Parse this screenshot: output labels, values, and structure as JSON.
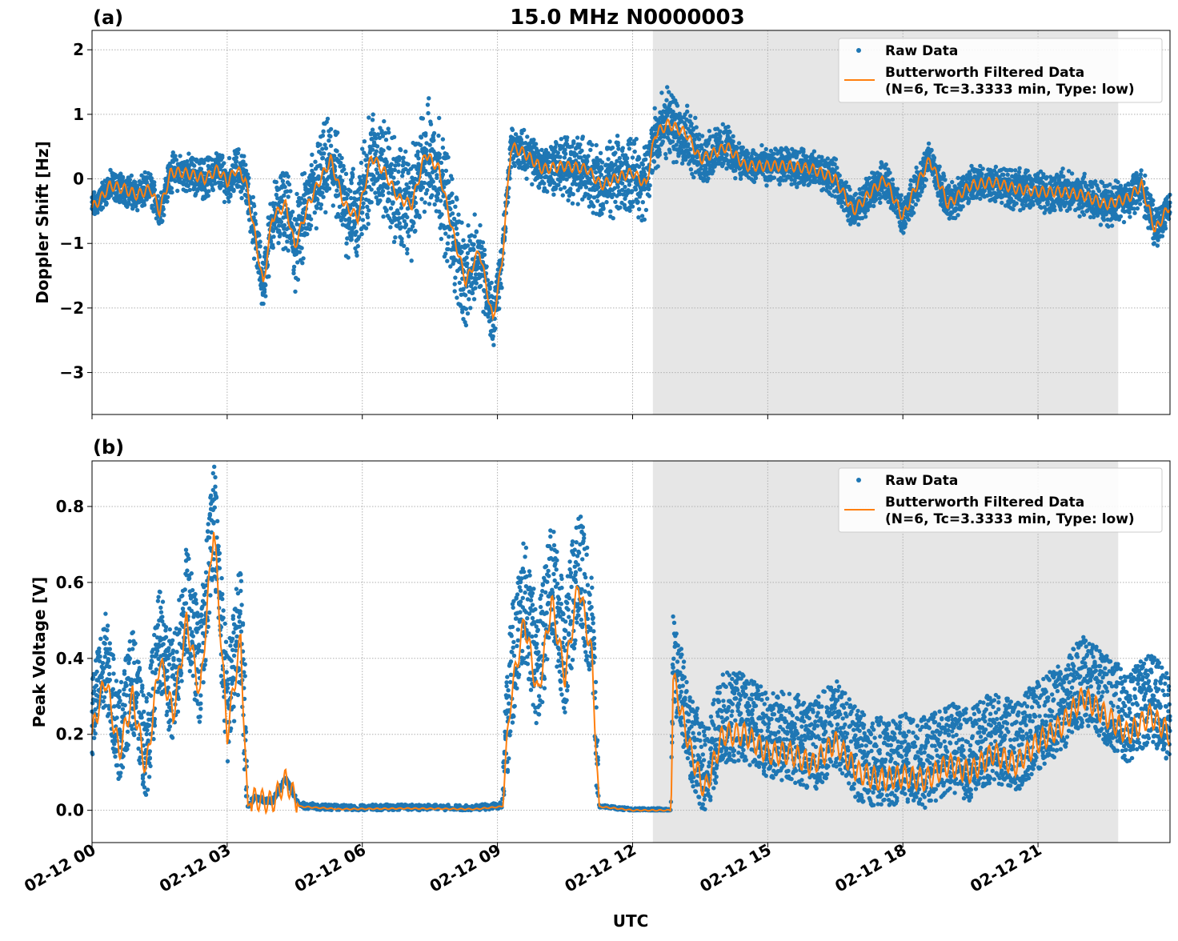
{
  "figure": {
    "xlabel": "UTC",
    "x_ticks": [
      "02-12 00",
      "02-12 03",
      "02-12 06",
      "02-12 09",
      "02-12 12",
      "02-12 15",
      "02-12 18",
      "02-12 21"
    ],
    "x_range_hours": [
      0,
      23.93
    ],
    "night_band_hours": [
      12.45,
      22.78
    ]
  },
  "colors": {
    "raw": "#1f77b4",
    "filtered": "#ff7f0e",
    "shade": "#e6e6e6",
    "grid": "#b0b0b0"
  },
  "chart_data": [
    {
      "type": "scatter",
      "panel": "(a)",
      "title": "15.0 MHz N0000003",
      "xlabel": "",
      "ylabel": "Doppler Shift [Hz]",
      "ylim": [
        -3.65,
        2.3
      ],
      "y_ticks": [
        2,
        1,
        0,
        -1,
        -2,
        -3
      ],
      "y_tick_labels": [
        "2",
        "1",
        "0",
        "−1",
        "−2",
        "−3"
      ],
      "legend": [
        "Raw Data",
        "Butterworth Filtered Data",
        "(N=6, Tc=3.3333 min, Type: low)"
      ],
      "legend_position": "top-right",
      "series": [
        {
          "name": "Butterworth Filtered Data",
          "style": "line",
          "points": [
            [
              0,
              -0.45
            ],
            [
              0.2,
              -0.3
            ],
            [
              0.4,
              -0.1
            ],
            [
              0.7,
              -0.15
            ],
            [
              1.0,
              -0.25
            ],
            [
              1.3,
              -0.15
            ],
            [
              1.5,
              -0.5
            ],
            [
              1.75,
              0.1
            ],
            [
              2.0,
              0.1
            ],
            [
              2.3,
              0.05
            ],
            [
              2.5,
              0.0
            ],
            [
              2.8,
              0.15
            ],
            [
              3.0,
              -0.05
            ],
            [
              3.2,
              0.15
            ],
            [
              3.4,
              0.0
            ],
            [
              3.6,
              -0.8
            ],
            [
              3.8,
              -1.65
            ],
            [
              4.0,
              -0.6
            ],
            [
              4.3,
              -0.4
            ],
            [
              4.5,
              -1.05
            ],
            [
              4.8,
              -0.4
            ],
            [
              5.0,
              -0.1
            ],
            [
              5.3,
              0.3
            ],
            [
              5.6,
              -0.4
            ],
            [
              5.9,
              -0.6
            ],
            [
              6.2,
              0.35
            ],
            [
              6.5,
              0.1
            ],
            [
              6.8,
              -0.3
            ],
            [
              7.1,
              -0.4
            ],
            [
              7.4,
              0.4
            ],
            [
              7.7,
              0.15
            ],
            [
              8.0,
              -0.8
            ],
            [
              8.3,
              -1.6
            ],
            [
              8.6,
              -1.1
            ],
            [
              8.9,
              -2.2
            ],
            [
              9.1,
              -1.3
            ],
            [
              9.3,
              0.5
            ],
            [
              9.6,
              0.4
            ],
            [
              10.0,
              0.15
            ],
            [
              10.5,
              0.2
            ],
            [
              11.0,
              0.15
            ],
            [
              11.3,
              -0.1
            ],
            [
              11.6,
              0.0
            ],
            [
              12.0,
              0.1
            ],
            [
              12.3,
              -0.1
            ],
            [
              12.5,
              0.7
            ],
            [
              12.8,
              0.85
            ],
            [
              13.2,
              0.7
            ],
            [
              13.5,
              0.3
            ],
            [
              13.8,
              0.4
            ],
            [
              14.1,
              0.5
            ],
            [
              14.5,
              0.2
            ],
            [
              15.0,
              0.2
            ],
            [
              15.5,
              0.2
            ],
            [
              16.0,
              0.15
            ],
            [
              16.5,
              0.0
            ],
            [
              16.9,
              -0.5
            ],
            [
              17.3,
              -0.2
            ],
            [
              17.6,
              0.0
            ],
            [
              18.0,
              -0.6
            ],
            [
              18.3,
              -0.1
            ],
            [
              18.6,
              0.3
            ],
            [
              19.0,
              -0.4
            ],
            [
              19.5,
              -0.1
            ],
            [
              20.0,
              -0.05
            ],
            [
              20.5,
              -0.15
            ],
            [
              21.0,
              -0.2
            ],
            [
              21.5,
              -0.2
            ],
            [
              22.0,
              -0.25
            ],
            [
              22.5,
              -0.4
            ],
            [
              23.0,
              -0.3
            ],
            [
              23.3,
              -0.1
            ],
            [
              23.6,
              -0.8
            ],
            [
              23.93,
              -0.4
            ]
          ]
        },
        {
          "name": "Raw Data",
          "style": "markers",
          "description": "scattered points centred on the filtered curve with per-hour spread",
          "spread_profile": [
            [
              0,
              0.2
            ],
            [
              3.3,
              0.3
            ],
            [
              4.5,
              0.6
            ],
            [
              8.0,
              0.8
            ],
            [
              9.3,
              0.25
            ],
            [
              11.0,
              0.5
            ],
            [
              12.5,
              0.55
            ],
            [
              14.5,
              0.25
            ],
            [
              17.0,
              0.25
            ],
            [
              23.93,
              0.3
            ]
          ]
        }
      ]
    },
    {
      "type": "scatter",
      "panel": "(b)",
      "title": "",
      "xlabel": "UTC",
      "ylabel": "Peak Voltage [V]",
      "ylim": [
        -0.085,
        0.92
      ],
      "y_ticks": [
        0.0,
        0.2,
        0.4,
        0.6,
        0.8
      ],
      "y_tick_labels": [
        "0.0",
        "0.2",
        "0.4",
        "0.6",
        "0.8"
      ],
      "legend": [
        "Raw Data",
        "Butterworth Filtered Data",
        "(N=6, Tc=3.3333 min, Type: low)"
      ],
      "legend_position": "top-right",
      "series": [
        {
          "name": "Butterworth Filtered Data",
          "style": "line",
          "points": [
            [
              0,
              0.2
            ],
            [
              0.3,
              0.35
            ],
            [
              0.6,
              0.15
            ],
            [
              0.9,
              0.3
            ],
            [
              1.2,
              0.1
            ],
            [
              1.5,
              0.4
            ],
            [
              1.8,
              0.25
            ],
            [
              2.1,
              0.5
            ],
            [
              2.4,
              0.3
            ],
            [
              2.7,
              0.75
            ],
            [
              3.0,
              0.2
            ],
            [
              3.3,
              0.45
            ],
            [
              3.45,
              0.01
            ],
            [
              3.6,
              0.03
            ],
            [
              4.0,
              0.02
            ],
            [
              4.3,
              0.08
            ],
            [
              4.6,
              0.01
            ],
            [
              5.5,
              0.003
            ],
            [
              7.0,
              0.005
            ],
            [
              8.5,
              0.003
            ],
            [
              9.1,
              0.01
            ],
            [
              9.3,
              0.3
            ],
            [
              9.6,
              0.5
            ],
            [
              9.9,
              0.3
            ],
            [
              10.2,
              0.55
            ],
            [
              10.5,
              0.35
            ],
            [
              10.8,
              0.6
            ],
            [
              11.1,
              0.4
            ],
            [
              11.25,
              0.01
            ],
            [
              12.0,
              0.0
            ],
            [
              12.85,
              0.0
            ],
            [
              12.9,
              0.35
            ],
            [
              13.3,
              0.15
            ],
            [
              13.6,
              0.05
            ],
            [
              14.0,
              0.2
            ],
            [
              14.5,
              0.2
            ],
            [
              15.0,
              0.15
            ],
            [
              15.5,
              0.15
            ],
            [
              16.0,
              0.12
            ],
            [
              16.5,
              0.18
            ],
            [
              17.0,
              0.1
            ],
            [
              17.5,
              0.08
            ],
            [
              18.0,
              0.09
            ],
            [
              18.5,
              0.08
            ],
            [
              19.0,
              0.12
            ],
            [
              19.5,
              0.1
            ],
            [
              20.0,
              0.15
            ],
            [
              20.5,
              0.12
            ],
            [
              21.0,
              0.18
            ],
            [
              21.5,
              0.22
            ],
            [
              22.0,
              0.3
            ],
            [
              22.5,
              0.25
            ],
            [
              23.0,
              0.2
            ],
            [
              23.5,
              0.25
            ],
            [
              23.93,
              0.2
            ]
          ]
        },
        {
          "name": "Raw Data",
          "style": "markers",
          "description": "scattered points above the filtered curve, large spread where signal present",
          "spread_profile": [
            [
              0,
              0.15
            ],
            [
              3.4,
              0.2
            ],
            [
              3.45,
              0.01
            ],
            [
              9.1,
              0.01
            ],
            [
              9.2,
              0.2
            ],
            [
              11.2,
              0.2
            ],
            [
              11.25,
              0.005
            ],
            [
              12.85,
              0.005
            ],
            [
              12.9,
              0.15
            ],
            [
              23.93,
              0.15
            ]
          ]
        }
      ]
    }
  ]
}
